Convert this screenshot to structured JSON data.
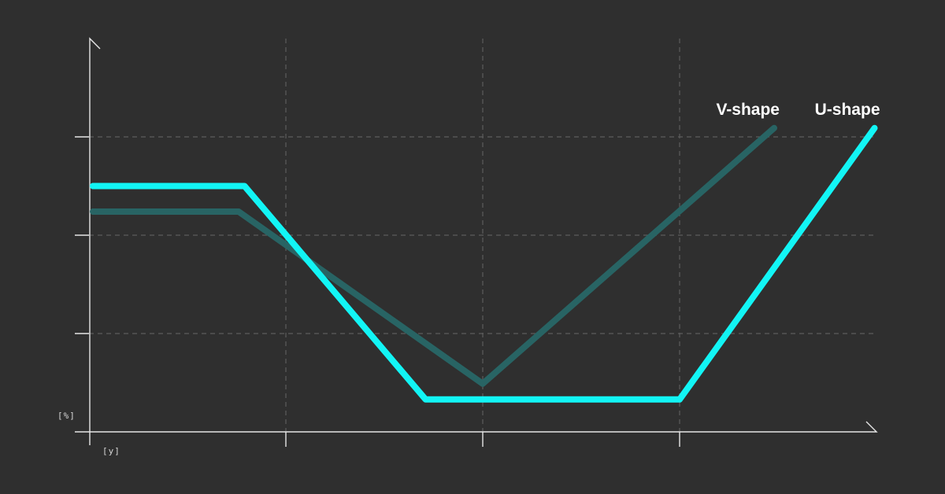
{
  "chart_data": {
    "type": "line",
    "title": "",
    "xlabel": "[y]",
    "ylabel": "[%]",
    "xlim": [
      0,
      4
    ],
    "ylim": [
      0,
      4
    ],
    "x_gridlines": [
      1,
      2,
      3
    ],
    "y_gridlines": [
      1,
      2,
      3
    ],
    "x_ticks": [
      1,
      2,
      3
    ],
    "y_ticks": [
      1,
      2,
      3
    ],
    "grid": true,
    "legend": "inline labels at line ends",
    "series": [
      {
        "name": "V-shape",
        "color": "#286464",
        "x": [
          0.02,
          0.76,
          2.0,
          3.48
        ],
        "y": [
          2.24,
          2.24,
          0.49,
          3.09
        ]
      },
      {
        "name": "U-shape",
        "color": "#12f5f5",
        "x": [
          0.02,
          0.79,
          1.71,
          3.0,
          3.99
        ],
        "y": [
          2.5,
          2.5,
          0.33,
          0.33,
          3.09
        ]
      }
    ]
  }
}
